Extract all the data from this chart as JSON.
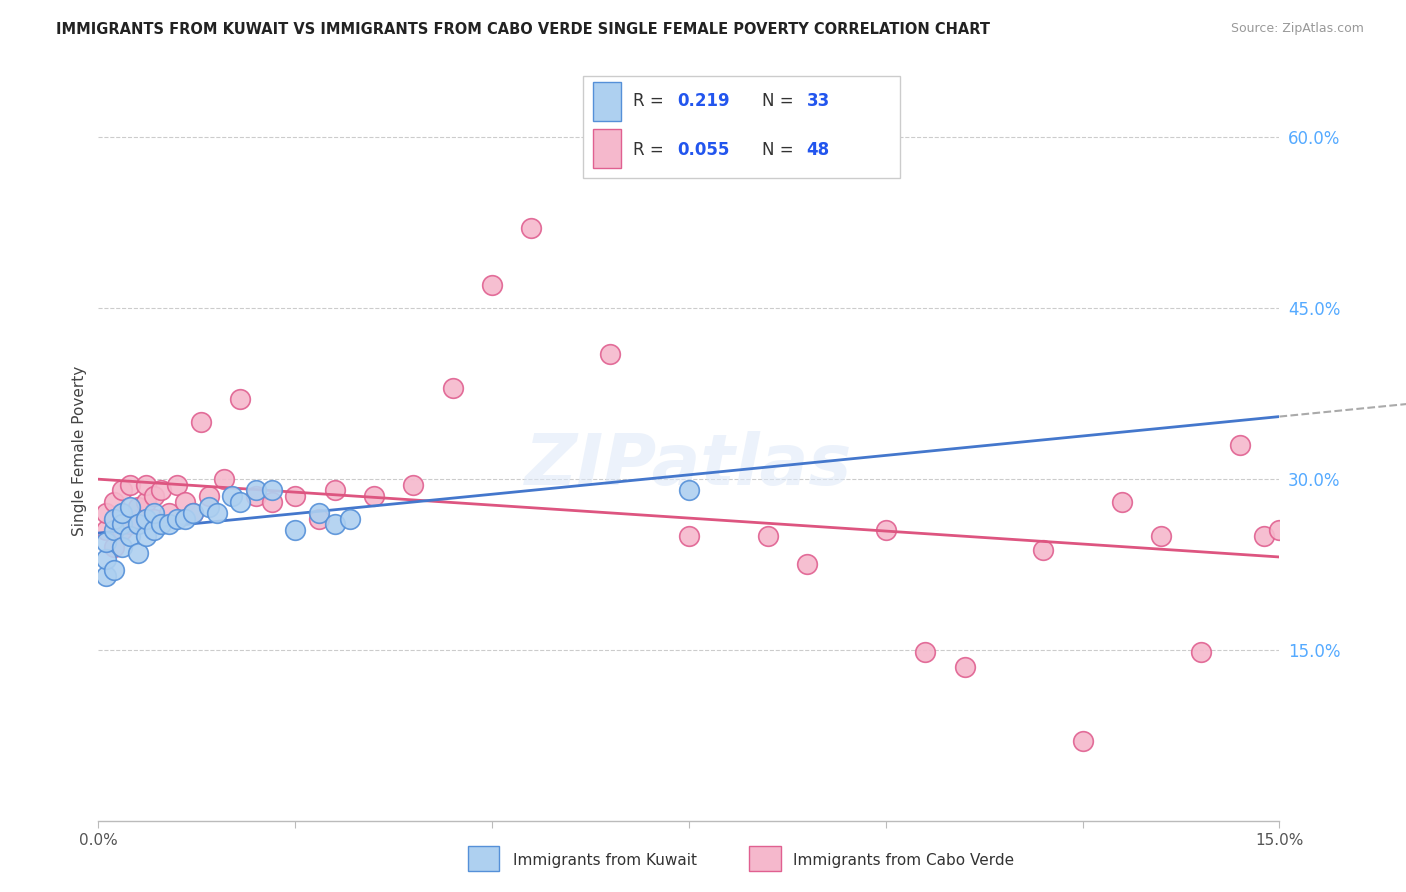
{
  "title": "IMMIGRANTS FROM KUWAIT VS IMMIGRANTS FROM CABO VERDE SINGLE FEMALE POVERTY CORRELATION CHART",
  "source": "Source: ZipAtlas.com",
  "ylabel": "Single Female Poverty",
  "xmin": 0.0,
  "xmax": 0.15,
  "ymin": 0.0,
  "ymax": 0.65,
  "yticks": [
    0.15,
    0.3,
    0.45,
    0.6
  ],
  "ytick_labels": [
    "15.0%",
    "30.0%",
    "45.0%",
    "60.0%"
  ],
  "r1": 0.219,
  "n1": 33,
  "r2": 0.055,
  "n2": 48,
  "color_kuwait_fill": "#aed0f0",
  "color_kuwait_edge": "#5590d8",
  "color_cabo_fill": "#f5b8cc",
  "color_cabo_edge": "#e06090",
  "color_line_kuwait": "#4477cc",
  "color_line_cabo": "#dd5580",
  "color_dashed": "#aaaaaa",
  "color_grid": "#cccccc",
  "color_title": "#222222",
  "color_source": "#999999",
  "color_rvalue": "#2255ee",
  "color_axis_right": "#55aaff",
  "kuwait_x": [
    0.001,
    0.001,
    0.001,
    0.002,
    0.002,
    0.002,
    0.003,
    0.003,
    0.003,
    0.004,
    0.004,
    0.005,
    0.005,
    0.006,
    0.006,
    0.007,
    0.007,
    0.008,
    0.009,
    0.01,
    0.011,
    0.012,
    0.014,
    0.015,
    0.017,
    0.018,
    0.02,
    0.022,
    0.025,
    0.028,
    0.03,
    0.032,
    0.075
  ],
  "kuwait_y": [
    0.215,
    0.23,
    0.245,
    0.22,
    0.255,
    0.265,
    0.24,
    0.26,
    0.27,
    0.25,
    0.275,
    0.235,
    0.26,
    0.25,
    0.265,
    0.255,
    0.27,
    0.26,
    0.26,
    0.265,
    0.265,
    0.27,
    0.275,
    0.27,
    0.285,
    0.28,
    0.29,
    0.29,
    0.255,
    0.27,
    0.26,
    0.265,
    0.29
  ],
  "cabo_x": [
    0.001,
    0.001,
    0.002,
    0.002,
    0.003,
    0.003,
    0.004,
    0.004,
    0.005,
    0.005,
    0.006,
    0.006,
    0.007,
    0.007,
    0.008,
    0.009,
    0.01,
    0.011,
    0.012,
    0.013,
    0.014,
    0.016,
    0.018,
    0.02,
    0.022,
    0.025,
    0.028,
    0.03,
    0.035,
    0.04,
    0.045,
    0.05,
    0.055,
    0.065,
    0.075,
    0.085,
    0.09,
    0.1,
    0.105,
    0.11,
    0.12,
    0.125,
    0.13,
    0.135,
    0.14,
    0.145,
    0.148,
    0.15
  ],
  "cabo_y": [
    0.255,
    0.27,
    0.24,
    0.28,
    0.255,
    0.29,
    0.26,
    0.295,
    0.265,
    0.275,
    0.28,
    0.295,
    0.265,
    0.285,
    0.29,
    0.27,
    0.295,
    0.28,
    0.27,
    0.35,
    0.285,
    0.3,
    0.37,
    0.285,
    0.28,
    0.285,
    0.265,
    0.29,
    0.285,
    0.295,
    0.38,
    0.47,
    0.52,
    0.41,
    0.25,
    0.25,
    0.225,
    0.255,
    0.148,
    0.135,
    0.238,
    0.07,
    0.28,
    0.25,
    0.148,
    0.33,
    0.25,
    0.255
  ]
}
